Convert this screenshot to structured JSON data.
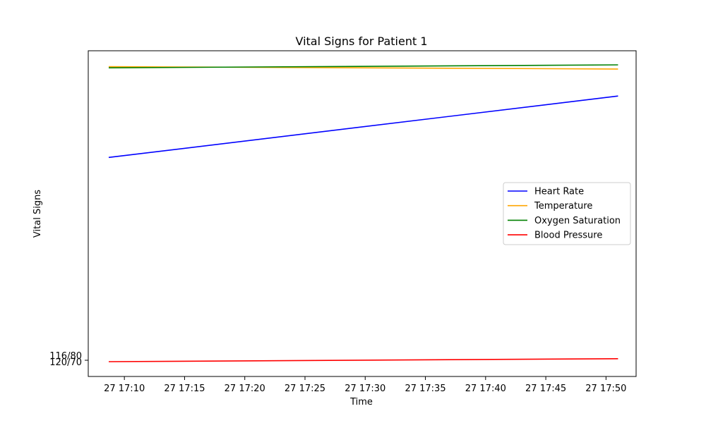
{
  "chart_data": {
    "type": "line",
    "title": "Vital Signs for Patient 1",
    "xlabel": "Time",
    "ylabel": "Vital Signs",
    "grid": false,
    "legend_position": "center-right",
    "x_ticks": [
      "27 17:10",
      "27 17:15",
      "27 17:20",
      "27 17:25",
      "27 17:30",
      "27 17:35",
      "27 17:40",
      "27 17:45",
      "27 17:50"
    ],
    "x_tick_minutes": [
      10,
      15,
      20,
      25,
      30,
      35,
      40,
      45,
      50
    ],
    "xlim_minutes": [
      7.0,
      52.5
    ],
    "y_ticks": [
      "116/80",
      "120/70"
    ],
    "x_minutes": [
      8.7,
      51.0
    ],
    "ylim": [
      0.0,
      1.0
    ],
    "series": [
      {
        "name": "Heart Rate",
        "color": "#0000ff",
        "values": [
          0.688,
          0.895
        ]
      },
      {
        "name": "Temperature",
        "color": "#ffa500",
        "values": [
          0.994,
          0.986
        ]
      },
      {
        "name": "Oxygen Saturation",
        "color": "#008000",
        "values": [
          0.99,
          1.0
        ]
      },
      {
        "name": "Blood Pressure",
        "color": "#ff0000",
        "values": [
          0.0,
          0.01
        ]
      }
    ]
  }
}
